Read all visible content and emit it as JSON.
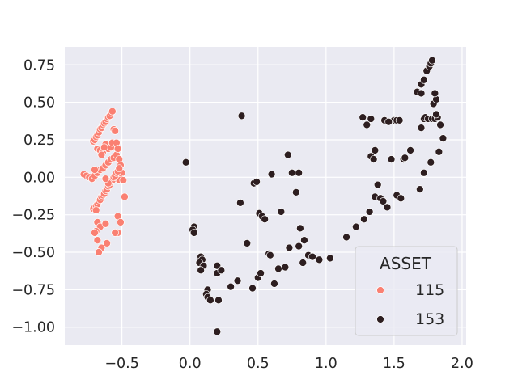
{
  "chart_data": {
    "type": "scatter",
    "title": "",
    "xlabel": "",
    "ylabel": "",
    "xlim": [
      -0.92,
      2.03
    ],
    "ylim": [
      -1.12,
      0.87
    ],
    "x_ticks": [
      -0.5,
      0.0,
      0.5,
      1.0,
      1.5,
      2.0
    ],
    "x_tick_labels": [
      "−0.5",
      "0.0",
      "0.5",
      "1.0",
      "1.5",
      "2.0"
    ],
    "y_ticks": [
      0.75,
      0.5,
      0.25,
      0.0,
      -0.25,
      -0.5,
      -0.75,
      -1.0
    ],
    "y_tick_labels": [
      "0.75",
      "0.50",
      "0.25",
      "0.00",
      "−0.25",
      "−0.50",
      "−0.75",
      "−1.00"
    ],
    "grid": true,
    "background": "#eaeaf2",
    "legend": {
      "title": "ASSET",
      "placement": "lower-right"
    },
    "series": [
      {
        "name": "115",
        "color": "#fa8072",
        "points": [
          [
            -0.78,
            0.02
          ],
          [
            -0.76,
            0.01
          ],
          [
            -0.74,
            0.0
          ],
          [
            -0.72,
            -0.01
          ],
          [
            -0.7,
            0.01
          ],
          [
            -0.68,
            0.03
          ],
          [
            -0.66,
            0.05
          ],
          [
            -0.64,
            0.06
          ],
          [
            -0.62,
            0.08
          ],
          [
            -0.6,
            0.1
          ],
          [
            -0.58,
            0.12
          ],
          [
            -0.56,
            0.13
          ],
          [
            -0.54,
            0.15
          ],
          [
            -0.52,
            0.12
          ],
          [
            -0.51,
            0.08
          ],
          [
            -0.5,
            0.03
          ],
          [
            -0.51,
            -0.01
          ],
          [
            -0.52,
            -0.02
          ],
          [
            -0.49,
            -0.02
          ],
          [
            -0.48,
            -0.13
          ],
          [
            -0.71,
            -0.21
          ],
          [
            -0.7,
            -0.2
          ],
          [
            -0.69,
            -0.19
          ],
          [
            -0.68,
            -0.18
          ],
          [
            -0.67,
            -0.16
          ],
          [
            -0.66,
            -0.15
          ],
          [
            -0.65,
            -0.13
          ],
          [
            -0.64,
            -0.12
          ],
          [
            -0.63,
            -0.11
          ],
          [
            -0.62,
            -0.09
          ],
          [
            -0.61,
            -0.08
          ],
          [
            -0.6,
            -0.06
          ],
          [
            -0.59,
            -0.05
          ],
          [
            -0.58,
            -0.03
          ],
          [
            -0.57,
            -0.02
          ],
          [
            -0.56,
            0.0
          ],
          [
            -0.55,
            0.01
          ],
          [
            -0.54,
            0.03
          ],
          [
            -0.53,
            0.04
          ],
          [
            -0.52,
            0.06
          ],
          [
            -0.71,
            0.24
          ],
          [
            -0.7,
            0.25
          ],
          [
            -0.69,
            0.27
          ],
          [
            -0.68,
            0.28
          ],
          [
            -0.67,
            0.3
          ],
          [
            -0.66,
            0.32
          ],
          [
            -0.65,
            0.33
          ],
          [
            -0.64,
            0.35
          ],
          [
            -0.63,
            0.36
          ],
          [
            -0.62,
            0.37
          ],
          [
            -0.61,
            0.39
          ],
          [
            -0.6,
            0.4
          ],
          [
            -0.59,
            0.41
          ],
          [
            -0.58,
            0.43
          ],
          [
            -0.57,
            0.44
          ],
          [
            -0.56,
            0.32
          ],
          [
            -0.55,
            0.31
          ],
          [
            -0.68,
            0.19
          ],
          [
            -0.66,
            0.18
          ],
          [
            -0.64,
            0.17
          ],
          [
            -0.62,
            0.22
          ],
          [
            -0.6,
            0.19
          ],
          [
            -0.58,
            0.2
          ],
          [
            -0.57,
            0.23
          ],
          [
            -0.54,
            0.23
          ],
          [
            -0.53,
            0.19
          ],
          [
            -0.63,
            0.2
          ],
          [
            -0.65,
            0.15
          ],
          [
            -0.7,
            0.05
          ],
          [
            -0.69,
            -0.22
          ],
          [
            -0.68,
            -0.3
          ],
          [
            -0.66,
            -0.33
          ],
          [
            -0.69,
            -0.36
          ],
          [
            -0.7,
            -0.37
          ],
          [
            -0.68,
            -0.42
          ],
          [
            -0.65,
            -0.47
          ],
          [
            -0.67,
            -0.5
          ],
          [
            -0.62,
            -0.31
          ],
          [
            -0.61,
            -0.44
          ],
          [
            -0.53,
            -0.26
          ],
          [
            -0.51,
            -0.3
          ],
          [
            -0.53,
            -0.37
          ],
          [
            -0.55,
            -0.37
          ],
          [
            -0.6,
            -0.04
          ],
          [
            -0.62,
            -0.01
          ]
        ]
      },
      {
        "name": "153",
        "color": "#2d1e20",
        "points": [
          [
            -0.03,
            0.1
          ],
          [
            0.03,
            -0.33
          ],
          [
            0.02,
            -0.35
          ],
          [
            0.03,
            -0.37
          ],
          [
            0.08,
            -0.53
          ],
          [
            0.09,
            -0.55
          ],
          [
            0.07,
            -0.57
          ],
          [
            0.1,
            -0.59
          ],
          [
            0.08,
            -0.62
          ],
          [
            0.13,
            -0.75
          ],
          [
            0.12,
            -0.78
          ],
          [
            0.13,
            -0.8
          ],
          [
            0.15,
            -0.82
          ],
          [
            0.2,
            -0.59
          ],
          [
            0.2,
            -0.64
          ],
          [
            0.23,
            -0.62
          ],
          [
            0.21,
            -0.82
          ],
          [
            0.2,
            -1.03
          ],
          [
            0.3,
            -0.73
          ],
          [
            0.35,
            -0.69
          ],
          [
            0.37,
            -0.17
          ],
          [
            0.38,
            0.41
          ],
          [
            0.42,
            -0.44
          ],
          [
            0.46,
            -0.74
          ],
          [
            0.47,
            -0.04
          ],
          [
            0.49,
            -0.03
          ],
          [
            0.5,
            -0.67
          ],
          [
            0.52,
            -0.64
          ],
          [
            0.51,
            -0.24
          ],
          [
            0.53,
            -0.26
          ],
          [
            0.55,
            -0.28
          ],
          [
            0.58,
            -0.51
          ],
          [
            0.59,
            -0.52
          ],
          [
            0.6,
            0.02
          ],
          [
            0.62,
            -0.71
          ],
          [
            0.65,
            -0.61
          ],
          [
            0.67,
            -0.23
          ],
          [
            0.7,
            -0.6
          ],
          [
            0.72,
            0.15
          ],
          [
            0.73,
            -0.47
          ],
          [
            0.75,
            0.03
          ],
          [
            0.78,
            -0.1
          ],
          [
            0.8,
            0.03
          ],
          [
            0.8,
            -0.46
          ],
          [
            0.81,
            -0.34
          ],
          [
            0.83,
            -0.57
          ],
          [
            0.84,
            -0.42
          ],
          [
            0.87,
            -0.52
          ],
          [
            0.9,
            -0.53
          ],
          [
            0.95,
            -0.55
          ],
          [
            1.03,
            -0.54
          ],
          [
            1.15,
            -0.4
          ],
          [
            1.22,
            -0.33
          ],
          [
            1.28,
            -0.28
          ],
          [
            1.32,
            -0.23
          ],
          [
            1.36,
            -0.13
          ],
          [
            1.38,
            -0.05
          ],
          [
            1.4,
            -0.14
          ],
          [
            1.42,
            -0.16
          ],
          [
            1.45,
            -0.2
          ],
          [
            1.48,
            0.12
          ],
          [
            1.52,
            -0.12
          ],
          [
            1.55,
            -0.14
          ],
          [
            1.57,
            0.12
          ],
          [
            1.58,
            0.13
          ],
          [
            1.5,
            0.38
          ],
          [
            1.52,
            0.38
          ],
          [
            1.54,
            0.38
          ],
          [
            1.27,
            0.4
          ],
          [
            1.3,
            0.35
          ],
          [
            1.33,
            0.39
          ],
          [
            1.36,
            0.18
          ],
          [
            1.33,
            0.14
          ],
          [
            1.35,
            0.12
          ],
          [
            1.43,
            0.38
          ],
          [
            1.46,
            0.37
          ],
          [
            1.62,
            0.18
          ],
          [
            1.67,
            0.57
          ],
          [
            1.7,
            0.56
          ],
          [
            1.7,
            0.33
          ],
          [
            1.72,
            0.39
          ],
          [
            1.73,
            0.4
          ],
          [
            1.75,
            0.39
          ],
          [
            1.78,
            0.39
          ],
          [
            1.8,
            0.39
          ],
          [
            1.82,
            0.4
          ],
          [
            1.69,
            -0.08
          ],
          [
            1.72,
            0.03
          ],
          [
            1.77,
            0.1
          ],
          [
            1.81,
            0.42
          ],
          [
            1.79,
            0.49
          ],
          [
            1.81,
            0.52
          ],
          [
            1.8,
            0.56
          ],
          [
            1.84,
            0.35
          ],
          [
            1.86,
            0.26
          ],
          [
            1.83,
            0.17
          ],
          [
            1.7,
            0.62
          ],
          [
            1.72,
            0.65
          ],
          [
            1.74,
            0.71
          ],
          [
            1.76,
            0.74
          ],
          [
            1.77,
            0.76
          ],
          [
            1.78,
            0.78
          ]
        ]
      }
    ]
  }
}
